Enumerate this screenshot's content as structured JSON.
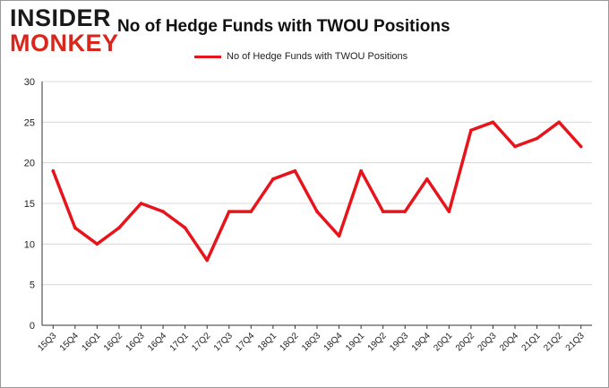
{
  "logo": {
    "line1": "INSIDER",
    "line2": "MONKEY"
  },
  "colors": {
    "series": "#e8141c",
    "grid": "#d8d8d8",
    "logo_accent": "#d9261c"
  },
  "chart_data": {
    "type": "line",
    "title": "No of Hedge Funds with TWOU Positions",
    "xlabel": "",
    "ylabel": "",
    "legend_position": "top",
    "grid": true,
    "ylim": [
      0,
      30
    ],
    "yticks": [
      0,
      5,
      10,
      15,
      20,
      25,
      30
    ],
    "categories": [
      "15Q3",
      "15Q4",
      "16Q1",
      "16Q2",
      "16Q3",
      "16Q4",
      "17Q1",
      "17Q2",
      "17Q3",
      "17Q4",
      "18Q1",
      "18Q2",
      "18Q3",
      "18Q4",
      "19Q1",
      "19Q2",
      "19Q3",
      "19Q4",
      "20Q1",
      "20Q2",
      "20Q3",
      "20Q4",
      "21Q1",
      "21Q2",
      "21Q3"
    ],
    "series": [
      {
        "name": "No of Hedge Funds with TWOU Positions",
        "values": [
          19,
          12,
          10,
          12,
          15,
          14,
          12,
          8,
          14,
          14,
          18,
          19,
          14,
          11,
          19,
          14,
          14,
          18,
          14,
          24,
          25,
          22,
          23,
          25,
          22
        ]
      }
    ]
  }
}
